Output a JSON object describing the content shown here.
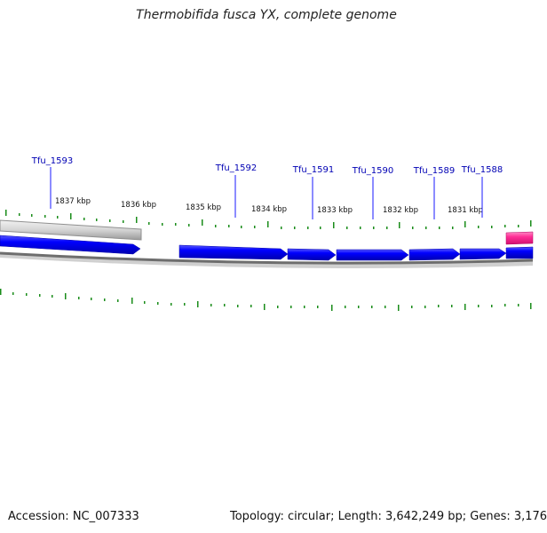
{
  "title": "Thermobifida fusca YX, complete genome",
  "footer": {
    "accession": "Accession: NC_007333",
    "summary": "Topology: circular; Length: 3,642,249 bp; Genes: 3,176"
  },
  "colors": {
    "gene_forward": "#0000ff",
    "gene_other": "#ff3fa0",
    "tick": "#1a8c1a",
    "label_line": "#1a1aff",
    "backbone": "#808080"
  },
  "scale_labels": [
    "1837 kbp",
    "1836 kbp",
    "1835 kbp",
    "1834 kbp",
    "1833 kbp",
    "1832 kbp",
    "1831 kbp"
  ],
  "genes": [
    {
      "name": "Tfu_1593"
    },
    {
      "name": "Tfu_1592"
    },
    {
      "name": "Tfu_1591"
    },
    {
      "name": "Tfu_1590"
    },
    {
      "name": "Tfu_1589"
    },
    {
      "name": "Tfu_1588"
    }
  ]
}
